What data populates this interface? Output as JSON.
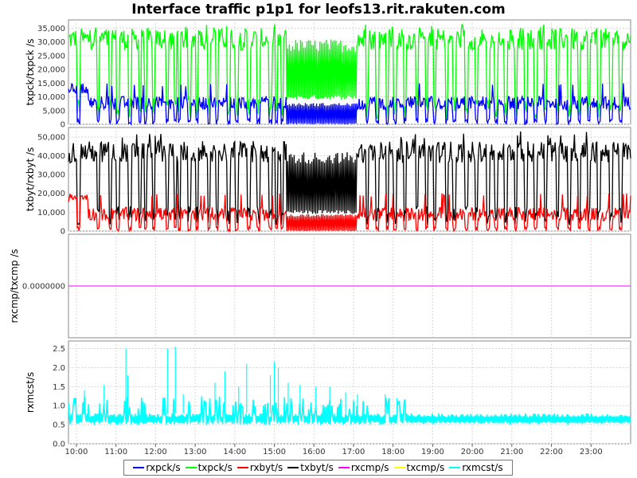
{
  "chart_data": {
    "type": "line",
    "title": "Interface traffic p1p1 for leofs13.rit.rakuten.com",
    "x_tick_labels": [
      "10:00",
      "11:00",
      "12:00",
      "13:00",
      "14:00",
      "15:00",
      "16:00",
      "17:00",
      "18:00",
      "19:00",
      "20:00",
      "21:00",
      "22:00",
      "23:00"
    ],
    "x_start_hour": 9.8,
    "x_end_hour": 24.0,
    "legend_position": "bottom",
    "grid": true,
    "panels": [
      {
        "ylabel": "txpck/txpck /s",
        "ylim": [
          0,
          38000
        ],
        "yticks": [
          0,
          5000,
          10000,
          15000,
          20000,
          25000,
          30000,
          35000
        ],
        "ytick_labels": [
          "0",
          "5,000",
          "10,000",
          "15,000",
          "20,000",
          "25,000",
          "30,000",
          "35,000"
        ],
        "series": [
          {
            "name": "txpck/s",
            "color": "#00ff00",
            "typical": 31000,
            "min": 22000,
            "max": 36500,
            "dip_to": 2000,
            "busy_band_floor": 9000
          },
          {
            "name": "rxpck/s",
            "color": "#0000ff",
            "typical": 7800,
            "min": 6000,
            "max": 15000,
            "dip_to": 0,
            "busy_band_floor": 0
          }
        ]
      },
      {
        "ylabel": "txbyt/rxbyt /s",
        "ylim": [
          0,
          55000
        ],
        "yticks": [
          0,
          10000,
          20000,
          30000,
          40000,
          50000
        ],
        "ytick_labels": [
          "0",
          "10,000",
          "20,000",
          "30,000",
          "40,000",
          "50,000"
        ],
        "series": [
          {
            "name": "txbyt/s",
            "color": "#000000",
            "typical": 42000,
            "min": 32000,
            "max": 53000,
            "dip_to": 3000,
            "busy_band_floor": 9000
          },
          {
            "name": "rxbyt/s",
            "color": "#ff0000",
            "typical": 9000,
            "min": 7000,
            "max": 20000,
            "dip_to": 0,
            "busy_band_floor": 0
          }
        ]
      },
      {
        "ylabel": "rxcmp/txcmp /s",
        "ylim": [
          -1,
          1
        ],
        "yticks": [
          0
        ],
        "ytick_labels": [
          "0.0000000"
        ],
        "series": [
          {
            "name": "rxcmp/s",
            "color": "#ff00ff",
            "constant": 0
          },
          {
            "name": "txcmp/s",
            "color": "#ffff00",
            "constant": 0
          }
        ]
      },
      {
        "ylabel": "rxmcst/s",
        "ylim": [
          0,
          2.7
        ],
        "yticks": [
          0,
          0.5,
          1.0,
          1.5,
          2.0,
          2.5
        ],
        "ytick_labels": [
          "0.0",
          "0.5",
          "1.0",
          "1.5",
          "2.0",
          "2.5"
        ],
        "series": [
          {
            "name": "rxmcst/s",
            "color": "#00ffff",
            "low": 0.5,
            "high": 0.8,
            "max": 2.55
          }
        ]
      }
    ],
    "busy_window_hours": [
      15.3,
      17.1
    ],
    "dip_hours": [
      10.05,
      10.55,
      10.85,
      11.05,
      11.35,
      11.6,
      11.75,
      11.95,
      12.3,
      12.5,
      12.6,
      12.85,
      13.05,
      13.35,
      13.55,
      13.85,
      14.05,
      14.35,
      14.6,
      14.9,
      15.05,
      15.2,
      17.35,
      17.6,
      17.85,
      18.05,
      18.3,
      18.6,
      18.85,
      19.05,
      19.35,
      19.55,
      19.85,
      20.1,
      20.4,
      20.6,
      20.85,
      21.1,
      21.35,
      21.6,
      21.85,
      22.15,
      22.45,
      22.7,
      22.95,
      23.2,
      23.5,
      23.75
    ],
    "mcst_spikes": [
      [
        10.2,
        1.4
      ],
      [
        10.7,
        1.55
      ],
      [
        11.25,
        2.5
      ],
      [
        11.3,
        1.8
      ],
      [
        12.3,
        2.5
      ],
      [
        12.5,
        2.55
      ],
      [
        12.7,
        1.3
      ],
      [
        13.5,
        1.6
      ],
      [
        13.75,
        1.9
      ],
      [
        14.1,
        1.5
      ],
      [
        14.3,
        2.1
      ],
      [
        14.9,
        1.8
      ],
      [
        15.0,
        2.15
      ],
      [
        15.1,
        2.0
      ],
      [
        15.35,
        1.6
      ],
      [
        15.65,
        1.55
      ],
      [
        16.05,
        1.5
      ],
      [
        16.4,
        1.5
      ],
      [
        16.8,
        1.35
      ],
      [
        17.1,
        1.3
      ],
      [
        17.8,
        1.3
      ],
      [
        18.1,
        1.2
      ]
    ]
  }
}
